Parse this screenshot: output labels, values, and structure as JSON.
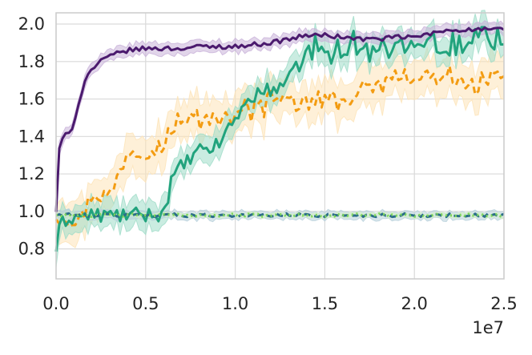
{
  "chart_data": {
    "type": "line",
    "xlim": [
      0,
      25000000
    ],
    "ylim": [
      0.64,
      2.06
    ],
    "x_ticks": [
      0,
      5000000,
      10000000,
      15000000,
      20000000,
      25000000
    ],
    "x_tick_labels": [
      "0.0",
      "0.5",
      "1.0",
      "1.5",
      "2.0",
      "2.5"
    ],
    "x_offset_label": "1e7",
    "y_ticks": [
      0.8,
      1.0,
      1.2,
      1.4,
      1.6,
      1.8,
      2.0
    ],
    "y_tick_labels": [
      "0.8",
      "1.0",
      "1.2",
      "1.4",
      "1.6",
      "1.8",
      "2.0"
    ],
    "grid": true,
    "series": [
      {
        "color": "#f39c12",
        "style": "dashed",
        "band": "#fde3b8",
        "band_width": 0.1,
        "keyframes": [
          [
            0,
            0.98
          ],
          [
            1000000,
            0.96
          ],
          [
            1500000,
            0.97
          ],
          [
            2000000,
            1.1
          ],
          [
            3000000,
            1.08
          ],
          [
            3500000,
            1.2
          ],
          [
            4000000,
            1.33
          ],
          [
            5000000,
            1.33
          ],
          [
            6000000,
            1.35
          ],
          [
            6500000,
            1.45
          ],
          [
            7000000,
            1.48
          ],
          [
            8000000,
            1.5
          ],
          [
            9000000,
            1.5
          ],
          [
            10000000,
            1.52
          ],
          [
            11000000,
            1.55
          ],
          [
            12000000,
            1.58
          ],
          [
            13000000,
            1.6
          ],
          [
            14000000,
            1.58
          ],
          [
            15000000,
            1.58
          ],
          [
            16000000,
            1.6
          ],
          [
            17000000,
            1.62
          ],
          [
            18000000,
            1.68
          ],
          [
            19000000,
            1.7
          ],
          [
            20000000,
            1.7
          ],
          [
            21000000,
            1.72
          ],
          [
            22000000,
            1.7
          ],
          [
            23000000,
            1.68
          ],
          [
            24000000,
            1.7
          ],
          [
            25000000,
            1.72
          ]
        ]
      },
      {
        "color": "#21a37d",
        "style": "solid",
        "band": "#9fdcc8",
        "band_width": 0.07,
        "keyframes": [
          [
            0,
            0.8
          ],
          [
            250000,
            0.93
          ],
          [
            600000,
            0.96
          ],
          [
            1000000,
            0.97
          ],
          [
            2000000,
            0.98
          ],
          [
            3000000,
            0.98
          ],
          [
            4000000,
            0.98
          ],
          [
            5000000,
            0.98
          ],
          [
            6000000,
            0.99
          ],
          [
            6500000,
            1.18
          ],
          [
            7000000,
            1.24
          ],
          [
            7500000,
            1.28
          ],
          [
            8000000,
            1.32
          ],
          [
            9000000,
            1.35
          ],
          [
            10000000,
            1.5
          ],
          [
            11000000,
            1.62
          ],
          [
            12000000,
            1.65
          ],
          [
            13000000,
            1.7
          ],
          [
            14000000,
            1.85
          ],
          [
            15000000,
            1.88
          ],
          [
            16000000,
            1.85
          ],
          [
            17000000,
            1.9
          ],
          [
            18000000,
            1.87
          ],
          [
            19000000,
            1.9
          ],
          [
            20000000,
            1.9
          ],
          [
            21000000,
            1.88
          ],
          [
            22000000,
            1.9
          ],
          [
            23000000,
            1.92
          ],
          [
            24000000,
            1.93
          ],
          [
            25000000,
            1.95
          ]
        ]
      },
      {
        "color": "#4b1a6e",
        "style": "solid",
        "band": "#c9b3d9",
        "band_width": 0.03,
        "keyframes": [
          [
            0,
            1.0
          ],
          [
            150000,
            1.32
          ],
          [
            400000,
            1.4
          ],
          [
            800000,
            1.42
          ],
          [
            1200000,
            1.55
          ],
          [
            1600000,
            1.7
          ],
          [
            2000000,
            1.76
          ],
          [
            2500000,
            1.8
          ],
          [
            3000000,
            1.83
          ],
          [
            4000000,
            1.86
          ],
          [
            5000000,
            1.87
          ],
          [
            6000000,
            1.87
          ],
          [
            7000000,
            1.87
          ],
          [
            8000000,
            1.88
          ],
          [
            9000000,
            1.88
          ],
          [
            10000000,
            1.88
          ],
          [
            11000000,
            1.89
          ],
          [
            12000000,
            1.9
          ],
          [
            13000000,
            1.92
          ],
          [
            14000000,
            1.94
          ],
          [
            15000000,
            1.94
          ],
          [
            16000000,
            1.93
          ],
          [
            17000000,
            1.92
          ],
          [
            18000000,
            1.92
          ],
          [
            19000000,
            1.93
          ],
          [
            20000000,
            1.93
          ],
          [
            21000000,
            1.95
          ],
          [
            22000000,
            1.97
          ],
          [
            23000000,
            1.97
          ],
          [
            24000000,
            1.97
          ],
          [
            25000000,
            1.97
          ]
        ]
      },
      {
        "color": "#2c6e8a",
        "style": "dashed",
        "band": "#b7cfdb",
        "band_width": 0.02,
        "keyframes": [
          [
            0,
            0.98
          ],
          [
            25000000,
            0.98
          ]
        ]
      },
      {
        "color": "#7dd65a",
        "style": "dotted",
        "band": "#d4f0c6",
        "band_width": 0.01,
        "keyframes": [
          [
            0,
            0.98
          ],
          [
            25000000,
            0.98
          ]
        ]
      }
    ]
  }
}
